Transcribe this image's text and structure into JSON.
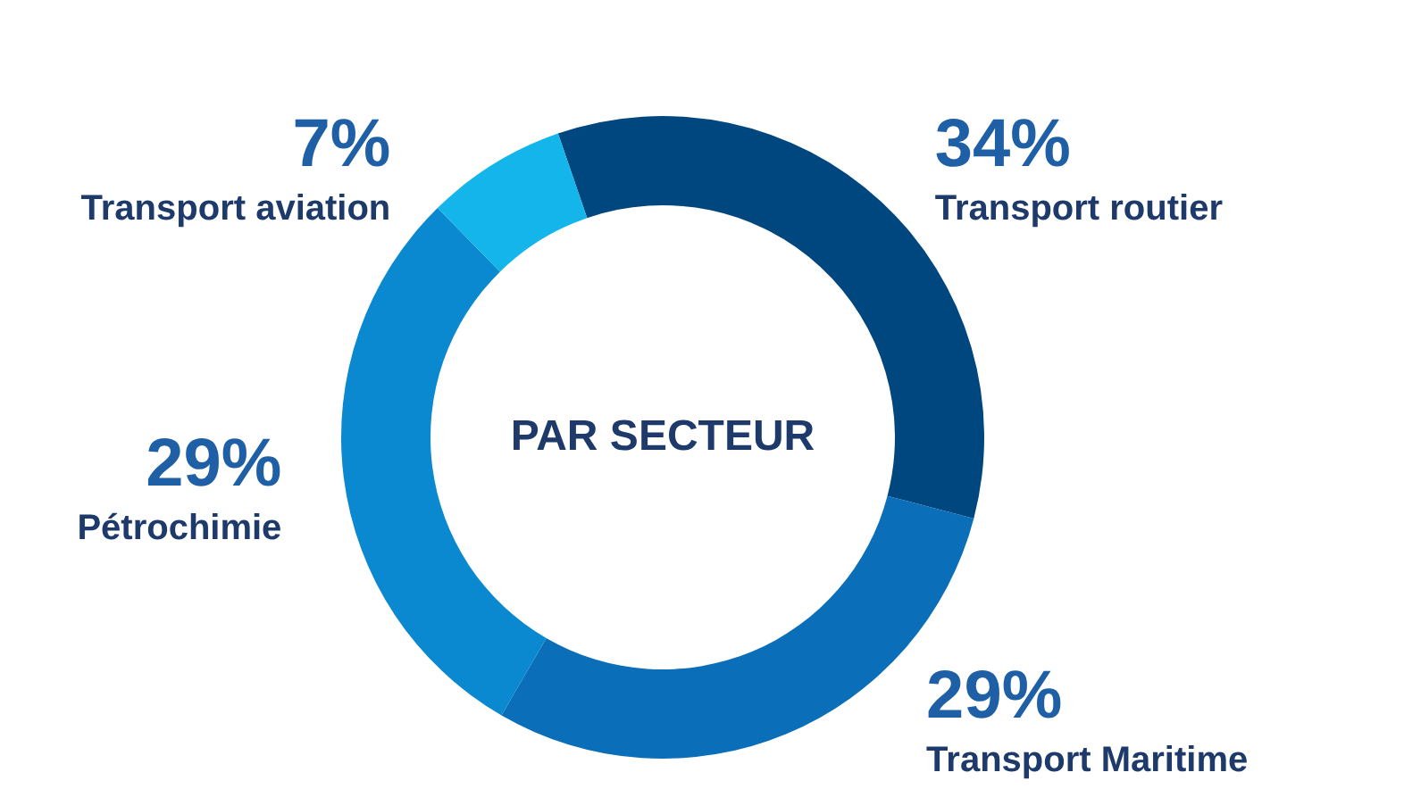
{
  "chart_data": {
    "type": "donut",
    "title": "PAR SECTEUR",
    "categories": [
      "Transport routier",
      "Transport Maritime",
      "Pétrochimie",
      "Transport aviation"
    ],
    "values": [
      34,
      29,
      29,
      7
    ],
    "colors": [
      "#00467f",
      "#0a6eb8",
      "#0a88d0",
      "#13b5ea"
    ],
    "value_labels": [
      "34%",
      "29%",
      "29%",
      "7%"
    ]
  }
}
